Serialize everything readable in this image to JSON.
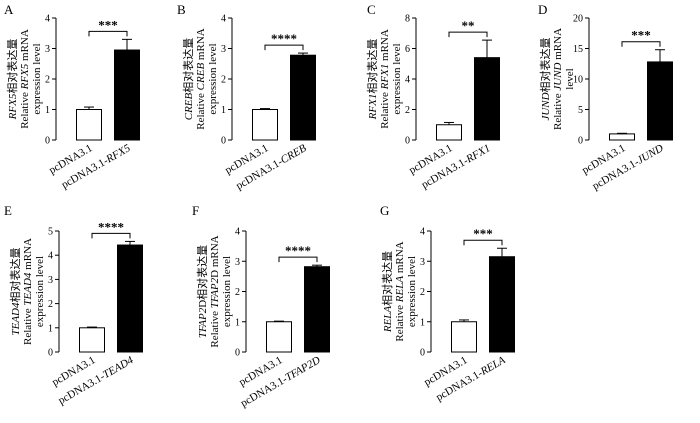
{
  "chart_data": [
    {
      "panel": "A",
      "type": "bar",
      "ylabel_cn": "RFX5相对表达量",
      "ylabel_en_prefix": "Relative ",
      "ylabel_gene": "RFX5",
      "ylabel_en_suffix": " mRNA",
      "ylabel_line3": "expression level",
      "categories": [
        "pcDNA3.1",
        "pcDNA3.1-"
      ],
      "category_gene": [
        "",
        "RFX5"
      ],
      "values": [
        1.0,
        2.95
      ],
      "errors": [
        0.08,
        0.35
      ],
      "ylim": [
        0,
        4
      ],
      "yticks": [
        0,
        1,
        2,
        3,
        4
      ],
      "yticklabels": [
        "0",
        "1",
        "2",
        "3",
        "4"
      ],
      "significance": "***"
    },
    {
      "panel": "B",
      "type": "bar",
      "ylabel_cn": "CREB相对表达量",
      "ylabel_en_prefix": "Relative ",
      "ylabel_gene": "CREB",
      "ylabel_en_suffix": " mRNA",
      "ylabel_line3": "expression level",
      "categories": [
        "pcDNA3.1",
        "pcDNA3.1-"
      ],
      "category_gene": [
        "",
        "CREB"
      ],
      "values": [
        1.0,
        2.78
      ],
      "errors": [
        0.03,
        0.07
      ],
      "ylim": [
        0,
        4
      ],
      "yticks": [
        0,
        1,
        2,
        3,
        4
      ],
      "yticklabels": [
        "0",
        "1",
        "2",
        "3",
        "4"
      ],
      "significance": "****"
    },
    {
      "panel": "C",
      "type": "bar",
      "ylabel_cn": "RFX1相对表达量",
      "ylabel_en_prefix": "Relative ",
      "ylabel_gene": "RFX1",
      "ylabel_en_suffix": " mRNA",
      "ylabel_line3": "expression level",
      "categories": [
        "pcDNA3.1",
        "pcDNA3.1-"
      ],
      "category_gene": [
        "",
        "RFX1"
      ],
      "values": [
        1.0,
        5.4
      ],
      "errors": [
        0.15,
        1.15
      ],
      "ylim": [
        0,
        8
      ],
      "yticks": [
        0,
        2,
        4,
        6,
        8
      ],
      "yticklabels": [
        "0",
        "2",
        "4",
        "6",
        "8"
      ],
      "significance": "**"
    },
    {
      "panel": "D",
      "type": "bar",
      "ylabel_cn": "JUND相对表达量",
      "ylabel_en_prefix": "Relative ",
      "ylabel_gene": "JUND",
      "ylabel_en_suffix": " mRNA",
      "ylabel_line3": "level",
      "categories": [
        "pcDNA3.1",
        "pcDNA3.1-"
      ],
      "category_gene": [
        "",
        "JUND"
      ],
      "values": [
        1.0,
        12.8
      ],
      "errors": [
        0.1,
        2.0
      ],
      "ylim": [
        0,
        20
      ],
      "yticks": [
        0,
        5,
        10,
        15,
        20
      ],
      "yticklabels": [
        "0",
        "5",
        "10",
        "15",
        "20"
      ],
      "significance": "***"
    },
    {
      "panel": "E",
      "type": "bar",
      "ylabel_cn": "TEAD4相对表达量",
      "ylabel_en_prefix": "Relative ",
      "ylabel_gene": "TEAD4",
      "ylabel_en_suffix": " mRNA",
      "ylabel_line3": "expression level",
      "categories": [
        "pcDNA3.1",
        "pcDNA3.1-"
      ],
      "category_gene": [
        "",
        "TEAD4"
      ],
      "values": [
        1.0,
        4.42
      ],
      "errors": [
        0.03,
        0.15
      ],
      "ylim": [
        0,
        5
      ],
      "yticks": [
        0,
        1,
        2,
        3,
        4,
        5
      ],
      "yticklabels": [
        "0",
        "1",
        "2",
        "3",
        "4",
        "5"
      ],
      "significance": "****"
    },
    {
      "panel": "F",
      "type": "bar",
      "ylabel_cn": "TFAP2D相对表达量",
      "ylabel_en_prefix": "Relative ",
      "ylabel_gene": "TFAP2",
      "ylabel_en_suffix": "D mRNA",
      "ylabel_line3": "expression level",
      "categories": [
        "pcDNA3.1",
        "pcDNA3.1-"
      ],
      "category_gene": [
        "",
        "TFAP2D"
      ],
      "values": [
        1.0,
        2.82
      ],
      "errors": [
        0.02,
        0.05
      ],
      "ylim": [
        0,
        4
      ],
      "yticks": [
        0,
        1,
        2,
        3,
        4
      ],
      "yticklabels": [
        "0",
        "1",
        "2",
        "3",
        "4"
      ],
      "significance": "****"
    },
    {
      "panel": "G",
      "type": "bar",
      "ylabel_cn": "RELA相对表达量",
      "ylabel_en_prefix": "Relative ",
      "ylabel_gene": "RELA",
      "ylabel_en_suffix": " mRNA",
      "ylabel_line3": "expression level",
      "categories": [
        "pcDNA3.1",
        "pcDNA3.1-"
      ],
      "category_gene": [
        "",
        "RELA"
      ],
      "values": [
        1.0,
        3.15
      ],
      "errors": [
        0.06,
        0.28
      ],
      "ylim": [
        0,
        4
      ],
      "yticks": [
        0,
        1,
        2,
        3,
        4
      ],
      "yticklabels": [
        "0",
        "1",
        "2",
        "3",
        "4"
      ],
      "significance": "***"
    }
  ]
}
